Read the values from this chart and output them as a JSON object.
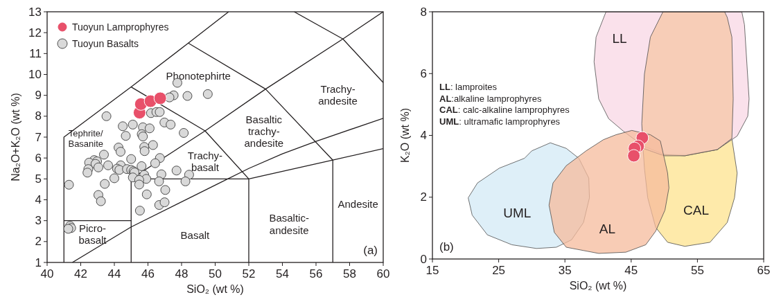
{
  "chart_data": [
    {
      "type": "scatter",
      "title": "(a)",
      "xlabel": "SiO₂ (wt %)",
      "ylabel": "Na₂O+K₂O (wt %)",
      "xlim": [
        40,
        60
      ],
      "ylim": [
        1,
        13
      ],
      "xticks": [
        40,
        42,
        44,
        46,
        48,
        50,
        52,
        54,
        56,
        58,
        60
      ],
      "yticks": [
        1,
        2,
        3,
        4,
        5,
        6,
        7,
        8,
        9,
        10,
        11,
        12,
        13
      ],
      "grid": false,
      "legend": "top left",
      "annotations": [
        "Phonotephirte",
        "Trachy-\nandesite",
        "Basaltic\ntrachy-\nandesite",
        "Trachy-\nbasalt",
        "Tephrite/\nBasanite",
        "Picro-\nbasalt",
        "Basalt",
        "Basaltic-\nandesite",
        "Andesite"
      ],
      "series": [
        {
          "type": "line",
          "marker": "none",
          "color": "#231f20",
          "x": [
            41,
            41,
            45,
            48.4,
            50.8
          ],
          "values": [
            1,
            7,
            9.4,
            11.5,
            13
          ]
        },
        {
          "type": "line",
          "marker": "none",
          "color": "#231f20",
          "x": [
            45,
            49.4,
            52,
            57,
            60
          ],
          "values": [
            9.4,
            7.3,
            5,
            5.9,
            6.45
          ]
        },
        {
          "type": "line",
          "marker": "none",
          "color": "#231f20",
          "x": [
            45,
            45,
            52,
            52
          ],
          "values": [
            1,
            5,
            5,
            1
          ]
        },
        {
          "type": "line",
          "marker": "none",
          "color": "#231f20",
          "x": [
            41,
            45
          ],
          "values": [
            3,
            3
          ]
        },
        {
          "type": "line",
          "marker": "none",
          "color": "#231f20",
          "x": [
            45,
            49.4,
            53,
            57.6,
            60
          ],
          "values": [
            5,
            7.3,
            9.3,
            11.7,
            13
          ]
        },
        {
          "type": "line",
          "marker": "none",
          "color": "#231f20",
          "x": [
            48.4,
            53,
            57,
            57
          ],
          "values": [
            11.5,
            9.3,
            5.9,
            1
          ]
        },
        {
          "type": "line",
          "marker": "none",
          "color": "#231f20",
          "x": [
            54.7,
            57.6,
            60
          ],
          "values": [
            13,
            11.7,
            9.61
          ]
        },
        {
          "type": "line",
          "marker": "none",
          "color": "#231f20",
          "x": [
            41.5,
            45,
            50,
            52,
            54,
            56,
            60
          ],
          "values": [
            1,
            2.7,
            4.7,
            5.5,
            6.2,
            6.8,
            7.9
          ]
        },
        {
          "name": "Tuoyun Basalts",
          "marker": "circle",
          "color": "#d9d9d9",
          "x": [
            47.75,
            47.53,
            47.28,
            48.35,
            49.56,
            43.53,
            46.18,
            46.5,
            46.7,
            46.98,
            47.35,
            44.5,
            45.1,
            45.7,
            46.1,
            48.13,
            44.68,
            45.63,
            45.7,
            46.3,
            45.78,
            45.8,
            44.25,
            44.37,
            43.38,
            46.71,
            45.0,
            42.8,
            42.97,
            42.5,
            42.88,
            43.05,
            43.63,
            44.38,
            44.16,
            44.3,
            44.75,
            45.0,
            45.14,
            45.2,
            45.62,
            46.43,
            42.45,
            42.4,
            45.1,
            45.78,
            45.9,
            45.48,
            45.48,
            46.8,
            46.66,
            47.7,
            48.45,
            48.23,
            47.03,
            45.93,
            44.0,
            43.43,
            41.3,
            43.05,
            43.2,
            45.52,
            46.67,
            46.99,
            41.36,
            41.43,
            41.26
          ],
          "values": [
            9.6,
            9.0,
            8.9,
            8.97,
            9.06,
            8.0,
            8.15,
            8.2,
            8.2,
            7.7,
            7.6,
            7.52,
            7.6,
            7.47,
            7.42,
            7.2,
            7.06,
            7.14,
            7.03,
            6.62,
            6.53,
            6.33,
            6.5,
            6.3,
            6.16,
            6.0,
            5.95,
            5.9,
            5.84,
            5.78,
            5.72,
            5.55,
            5.65,
            5.65,
            5.49,
            5.43,
            5.47,
            5.43,
            5.37,
            5.31,
            5.61,
            5.75,
            5.47,
            5.3,
            5.07,
            5.19,
            5.0,
            4.95,
            4.73,
            5.22,
            4.88,
            5.4,
            5.2,
            4.88,
            4.47,
            4.26,
            5.03,
            4.76,
            4.72,
            4.23,
            3.93,
            3.48,
            3.75,
            3.88,
            2.75,
            2.65,
            2.61
          ]
        },
        {
          "name": "Tuoyun Lamprophyres",
          "marker": "circle",
          "color": "#e8506a",
          "x": [
            45.5,
            45.58,
            46.15,
            46.73
          ],
          "values": [
            8.17,
            8.58,
            8.72,
            8.86
          ]
        }
      ]
    },
    {
      "type": "scatter",
      "title": "(b)",
      "xlabel": "SiO₂ (wt %)",
      "ylabel": "K₂O (wt %)",
      "xlim": [
        15,
        65
      ],
      "ylim": [
        0,
        8
      ],
      "xticks": [
        15,
        25,
        35,
        45,
        55,
        65
      ],
      "yticks": [
        0,
        2,
        4,
        6,
        8
      ],
      "grid": false,
      "annotations": [
        "LL: lamproites",
        "AL:alkaline lamprophyres",
        "CAL: calc-alkaline lamprophyres",
        "UML: ultramafic lamprophyres",
        "LL",
        "UML",
        "AL",
        "CAL"
      ],
      "series": [
        {
          "type": "area",
          "marker": "none",
          "color": "#d3e9f6",
          "x": [
            32.8,
            35.2,
            37.1,
            38.6,
            38.7,
            37.8,
            36.0,
            33.7,
            30.7,
            27.0,
            23.3,
            21.0,
            20.4,
            21.8,
            25.1,
            28.9,
            30.0,
            32.8
          ],
          "values": [
            3.76,
            3.58,
            3.26,
            2.62,
            1.98,
            1.18,
            0.62,
            0.38,
            0.34,
            0.46,
            0.78,
            1.42,
            1.98,
            2.46,
            2.94,
            3.26,
            3.5,
            3.76
          ]
        },
        {
          "type": "area",
          "marker": "none",
          "color": "#fde38e",
          "x": [
            46.8,
            49.4,
            53.1,
            58.0,
            60.2,
            61.0,
            60.6,
            59.5,
            56.9,
            53.1,
            50.5,
            48.7,
            47.5,
            47.0,
            46.8
          ],
          "values": [
            3.58,
            3.38,
            3.38,
            3.54,
            3.9,
            2.78,
            1.98,
            1.18,
            0.54,
            0.41,
            0.54,
            1.02,
            1.98,
            2.94,
            3.58
          ]
        },
        {
          "type": "area",
          "marker": "none",
          "color": "#f8d7e4",
          "x": [
            41.2,
            39.7,
            39.4,
            40.1,
            41.6,
            43.8,
            46.8,
            50.0,
            53.1,
            58.0,
            61.0,
            62.6,
            62.8,
            62.1,
            61.7
          ],
          "values": [
            8,
            7.18,
            6.38,
            5.18,
            4.54,
            4.14,
            3.66,
            3.38,
            3.34,
            3.54,
            3.98,
            4.62,
            5.18,
            7.58,
            8
          ]
        },
        {
          "type": "area",
          "marker": "none",
          "color": "#f6c6a6",
          "x": [
            49.8,
            47.9,
            47.0,
            46.6,
            46.8,
            50.0,
            53.1,
            58.0,
            60.2,
            60.4,
            60.2,
            59.5,
            59.1
          ],
          "values": [
            8,
            7.18,
            5.98,
            4.38,
            3.58,
            3.34,
            3.34,
            3.54,
            3.9,
            5.18,
            7.18,
            7.82,
            8
          ]
        },
        {
          "type": "area",
          "marker": "none",
          "color": "#f5bb9c",
          "x": [
            42.7,
            45.1,
            47.9,
            49.4,
            50.0,
            50.5,
            50.7,
            50.1,
            48.7,
            47.2,
            44.2,
            40.1,
            35.2,
            33.4,
            32.6,
            33.2,
            35.2,
            38.2,
            40.8,
            42.7
          ],
          "values": [
            4.02,
            4.16,
            4.02,
            3.82,
            3.26,
            2.78,
            2.3,
            1.58,
            0.9,
            0.46,
            0.22,
            0.18,
            0.38,
            0.86,
            1.74,
            2.46,
            3.02,
            3.5,
            3.86,
            4.02
          ]
        },
        {
          "marker": "circle",
          "color": "#e8506a",
          "x": [
            46.68,
            46.05,
            45.5,
            45.4
          ],
          "values": [
            3.92,
            3.65,
            3.58,
            3.34
          ]
        }
      ]
    }
  ]
}
